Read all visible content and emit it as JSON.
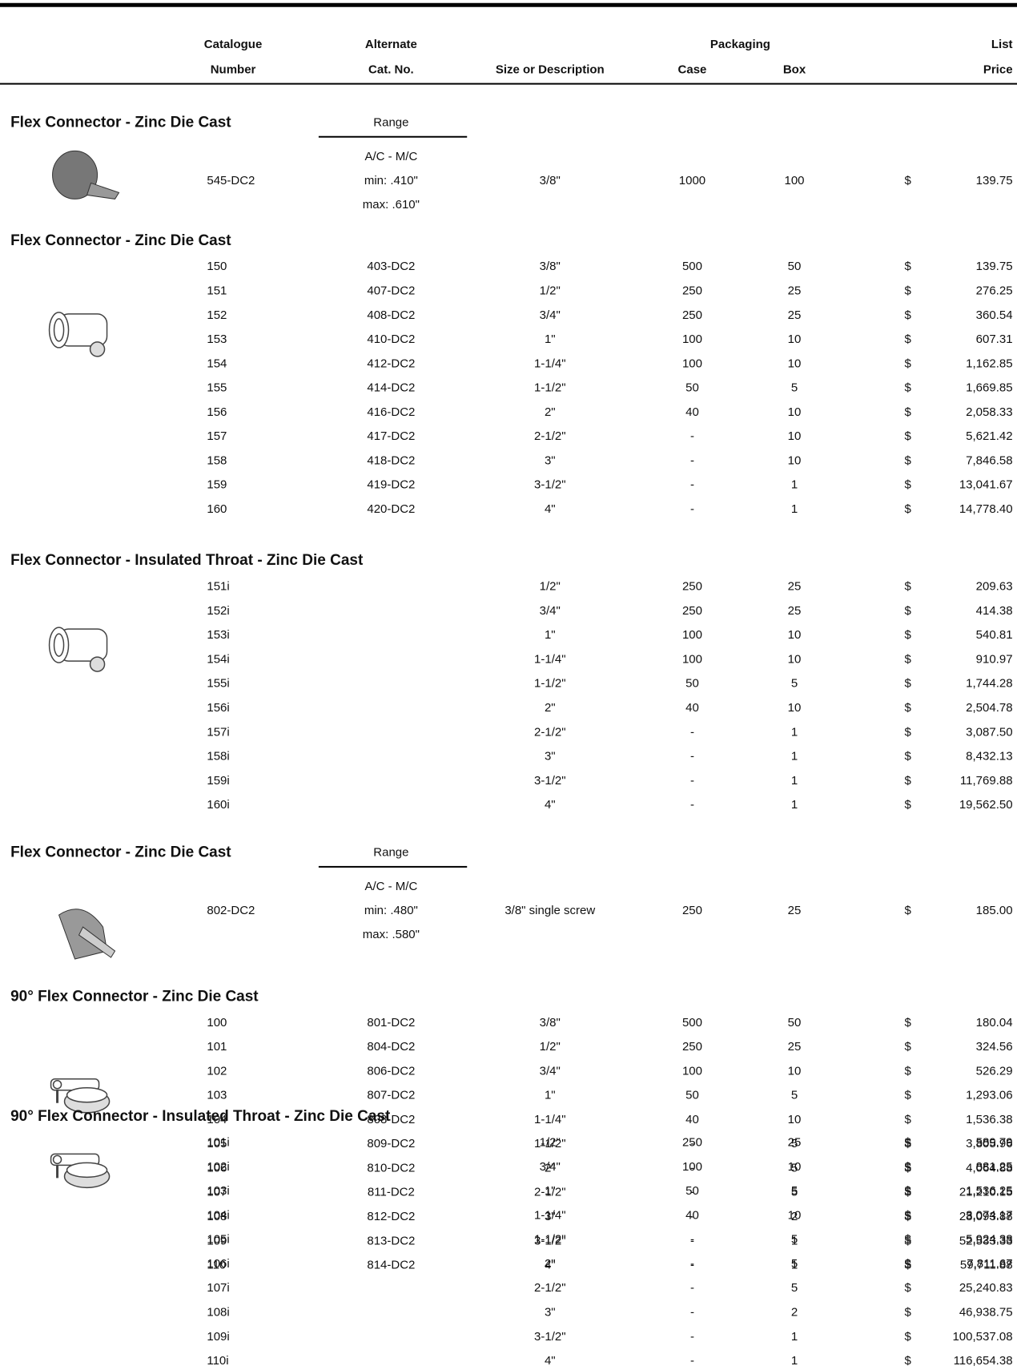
{
  "currency": "$",
  "header": {
    "catalogue_number": [
      "Catalogue",
      "Number"
    ],
    "alternate": [
      "Alternate",
      "Cat. No."
    ],
    "size": "Size or Description",
    "packaging": "Packaging",
    "case": "Case",
    "box": "Box",
    "list_price": [
      "List",
      "Price"
    ]
  },
  "sections": [
    {
      "title": "Flex Connector - Zinc Die Cast",
      "range": {
        "label": "Range",
        "type": "A/C - M/C",
        "min": "min: .410\"",
        "max": "max: .610\""
      },
      "rows": [
        [
          "545-DC2",
          null,
          "3/8\"",
          "1000",
          "100",
          "139.75"
        ]
      ]
    },
    {
      "title": "Flex Connector - Zinc Die Cast",
      "rows": [
        [
          "150",
          "403-DC2",
          "3/8\"",
          "500",
          "50",
          "139.75"
        ],
        [
          "151",
          "407-DC2",
          "1/2\"",
          "250",
          "25",
          "276.25"
        ],
        [
          "152",
          "408-DC2",
          "3/4\"",
          "250",
          "25",
          "360.54"
        ],
        [
          "153",
          "410-DC2",
          "1\"",
          "100",
          "10",
          "607.31"
        ],
        [
          "154",
          "412-DC2",
          "1-1/4\"",
          "100",
          "10",
          "1,162.85"
        ],
        [
          "155",
          "414-DC2",
          "1-1/2\"",
          "50",
          "5",
          "1,669.85"
        ],
        [
          "156",
          "416-DC2",
          "2\"",
          "40",
          "10",
          "2,058.33"
        ],
        [
          "157",
          "417-DC2",
          "2-1/2\"",
          "-",
          "10",
          "5,621.42"
        ],
        [
          "158",
          "418-DC2",
          "3\"",
          "-",
          "10",
          "7,846.58"
        ],
        [
          "159",
          "419-DC2",
          "3-1/2\"",
          "-",
          "1",
          "13,041.67"
        ],
        [
          "160",
          "420-DC2",
          "4\"",
          "-",
          "1",
          "14,778.40"
        ]
      ]
    },
    {
      "title": "Flex Connector - Insulated Throat - Zinc Die Cast",
      "rows": [
        [
          "151i",
          null,
          "1/2\"",
          "250",
          "25",
          "209.63"
        ],
        [
          "152i",
          null,
          "3/4\"",
          "250",
          "25",
          "414.38"
        ],
        [
          "153i",
          null,
          "1\"",
          "100",
          "10",
          "540.81"
        ],
        [
          "154i",
          null,
          "1-1/4\"",
          "100",
          "10",
          "910.97"
        ],
        [
          "155i",
          null,
          "1-1/2\"",
          "50",
          "5",
          "1,744.28"
        ],
        [
          "156i",
          null,
          "2\"",
          "40",
          "10",
          "2,504.78"
        ],
        [
          "157i",
          null,
          "2-1/2\"",
          "-",
          "1",
          "3,087.50"
        ],
        [
          "158i",
          null,
          "3\"",
          "-",
          "1",
          "8,432.13"
        ],
        [
          "159i",
          null,
          "3-1/2\"",
          "-",
          "1",
          "11,769.88"
        ],
        [
          "160i",
          null,
          "4\"",
          "-",
          "1",
          "19,562.50"
        ]
      ]
    },
    {
      "title": "Flex Connector - Zinc Die Cast",
      "range": {
        "label": "Range",
        "type": "A/C - M/C",
        "min": "min: .480\"",
        "max": "max: .580\""
      },
      "rows": [
        [
          "802-DC2",
          null,
          "3/8\" single screw",
          "250",
          "25",
          "185.00"
        ]
      ]
    },
    {
      "title": "90° Flex Connector - Zinc Die Cast",
      "rows": [
        [
          "100",
          "801-DC2",
          "3/8\"",
          "500",
          "50",
          "180.04"
        ],
        [
          "101",
          "804-DC2",
          "1/2\"",
          "250",
          "25",
          "324.56"
        ],
        [
          "102",
          "806-DC2",
          "3/4\"",
          "100",
          "10",
          "526.29"
        ],
        [
          "103",
          "807-DC2",
          "1\"",
          "50",
          "5",
          "1,293.06"
        ],
        [
          "104",
          "808-DC2",
          "1-1/4\"",
          "40",
          "10",
          "1,536.38"
        ],
        [
          "105",
          "809-DC2",
          "1-1/2\"",
          "-",
          "5",
          "3,805.96"
        ],
        [
          "106",
          "810-DC2",
          "2\"",
          "-",
          "5",
          "4,064.88"
        ],
        [
          "107",
          "811-DC2",
          "2-1/2\"",
          "-",
          "5",
          "21,210.15"
        ],
        [
          "108",
          "812-DC2",
          "3\"",
          "-",
          "2",
          "28,093.88"
        ],
        [
          "109",
          "813-DC2",
          "3-1/2\"",
          "-",
          "1",
          "52,533.33"
        ],
        [
          "110",
          "814-DC2",
          "4\"",
          "-",
          "1",
          "59,711.88"
        ]
      ]
    },
    {
      "title": "90° Flex Connector - Insulated Throat - Zinc Die Cast",
      "rows": [
        [
          "101i",
          null,
          "1/2\"",
          "250",
          "25",
          "589.79"
        ],
        [
          "102i",
          null,
          "3/4\"",
          "100",
          "10",
          "881.25"
        ],
        [
          "103i",
          null,
          "1\"",
          "50",
          "5",
          "1,536.25"
        ],
        [
          "104i",
          null,
          "1-1/4\"",
          "40",
          "10",
          "3,074.17"
        ],
        [
          "105i",
          null,
          "1-1/2\"",
          "-",
          "5",
          "5,924.38"
        ],
        [
          "106i",
          null,
          "2\"",
          "-",
          "5",
          "7,811.67"
        ],
        [
          "107i",
          null,
          "2-1/2\"",
          "-",
          "5",
          "25,240.83"
        ],
        [
          "108i",
          null,
          "3\"",
          "-",
          "2",
          "46,938.75"
        ],
        [
          "109i",
          null,
          "3-1/2\"",
          "-",
          "1",
          "100,537.08"
        ],
        [
          "110i",
          null,
          "4\"",
          "-",
          "1",
          "116,654.38"
        ]
      ]
    }
  ]
}
